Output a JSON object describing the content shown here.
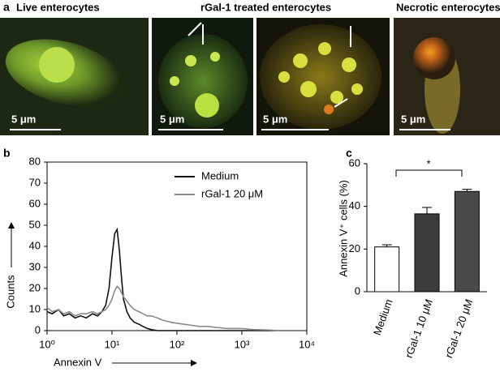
{
  "panel_a": {
    "label": "a",
    "titles": [
      "Live enterocytes",
      "rGal-1  treated enterocytes",
      "Necrotic enterocytes"
    ],
    "scale_bars": [
      "5 μm",
      "5 μm",
      "5 μm",
      "5 μm"
    ]
  },
  "chart_data": [
    {
      "type": "line",
      "panel_label": "b",
      "xlabel": "Annexin V",
      "ylabel": "Counts",
      "xscale": "log",
      "xlim": [
        1,
        10000
      ],
      "xticks": [
        {
          "value": 1,
          "label": "10⁰"
        },
        {
          "value": 10,
          "label": "10¹"
        },
        {
          "value": 100,
          "label": "10²"
        },
        {
          "value": 1000,
          "label": "10³"
        },
        {
          "value": 10000,
          "label": "10⁴"
        }
      ],
      "ylim": [
        0,
        80
      ],
      "yticks": [
        0,
        10,
        20,
        30,
        40,
        50,
        60,
        70,
        80
      ],
      "legend": "upper right",
      "x": [
        1,
        1.2,
        1.5,
        1.8,
        2.2,
        2.7,
        3.3,
        4,
        5,
        6,
        7,
        8,
        9,
        10,
        11,
        12,
        13,
        14,
        15,
        17,
        19,
        22,
        26,
        30,
        35,
        40,
        50,
        60,
        80,
        100,
        130,
        170,
        220,
        300,
        400,
        600,
        1000,
        1500,
        2500,
        4000,
        6000
      ],
      "series": [
        {
          "name": "Medium",
          "color": "#111111",
          "values": [
            9,
            8,
            10,
            7,
            8,
            6,
            7,
            6,
            8,
            7,
            9,
            12,
            20,
            35,
            46,
            48,
            38,
            25,
            15,
            9,
            6,
            4,
            3,
            2,
            1,
            0.5,
            0,
            0,
            0,
            0,
            0,
            0,
            0,
            0,
            0,
            0,
            0,
            0,
            0,
            0,
            0
          ]
        },
        {
          "name": "rGal-1  20 μM",
          "color": "#8a8a8a",
          "values": [
            11,
            9,
            10,
            8,
            9,
            7,
            8,
            8,
            9,
            8,
            9,
            10,
            12,
            15,
            19,
            21,
            20,
            18,
            16,
            14,
            12,
            10,
            9,
            8,
            7,
            7,
            6,
            5,
            4,
            3.5,
            3,
            2.5,
            2,
            2,
            1.5,
            1,
            1,
            0.5,
            0.3,
            0,
            0
          ]
        }
      ]
    },
    {
      "type": "bar",
      "panel_label": "c",
      "ylabel": "Annexin V⁺ cells (%)",
      "annotation": "*",
      "categories": [
        "Medium",
        "rGal-1 10 μM",
        "rGal-1 20 μM"
      ],
      "values": [
        21,
        36.5,
        47
      ],
      "errors": [
        1,
        3,
        1
      ],
      "colors": [
        "#ffffff",
        "#3c3c3c",
        "#4a4a4a"
      ],
      "ylim": [
        0,
        60
      ],
      "yticks": [
        0,
        20,
        40,
        60
      ]
    }
  ]
}
